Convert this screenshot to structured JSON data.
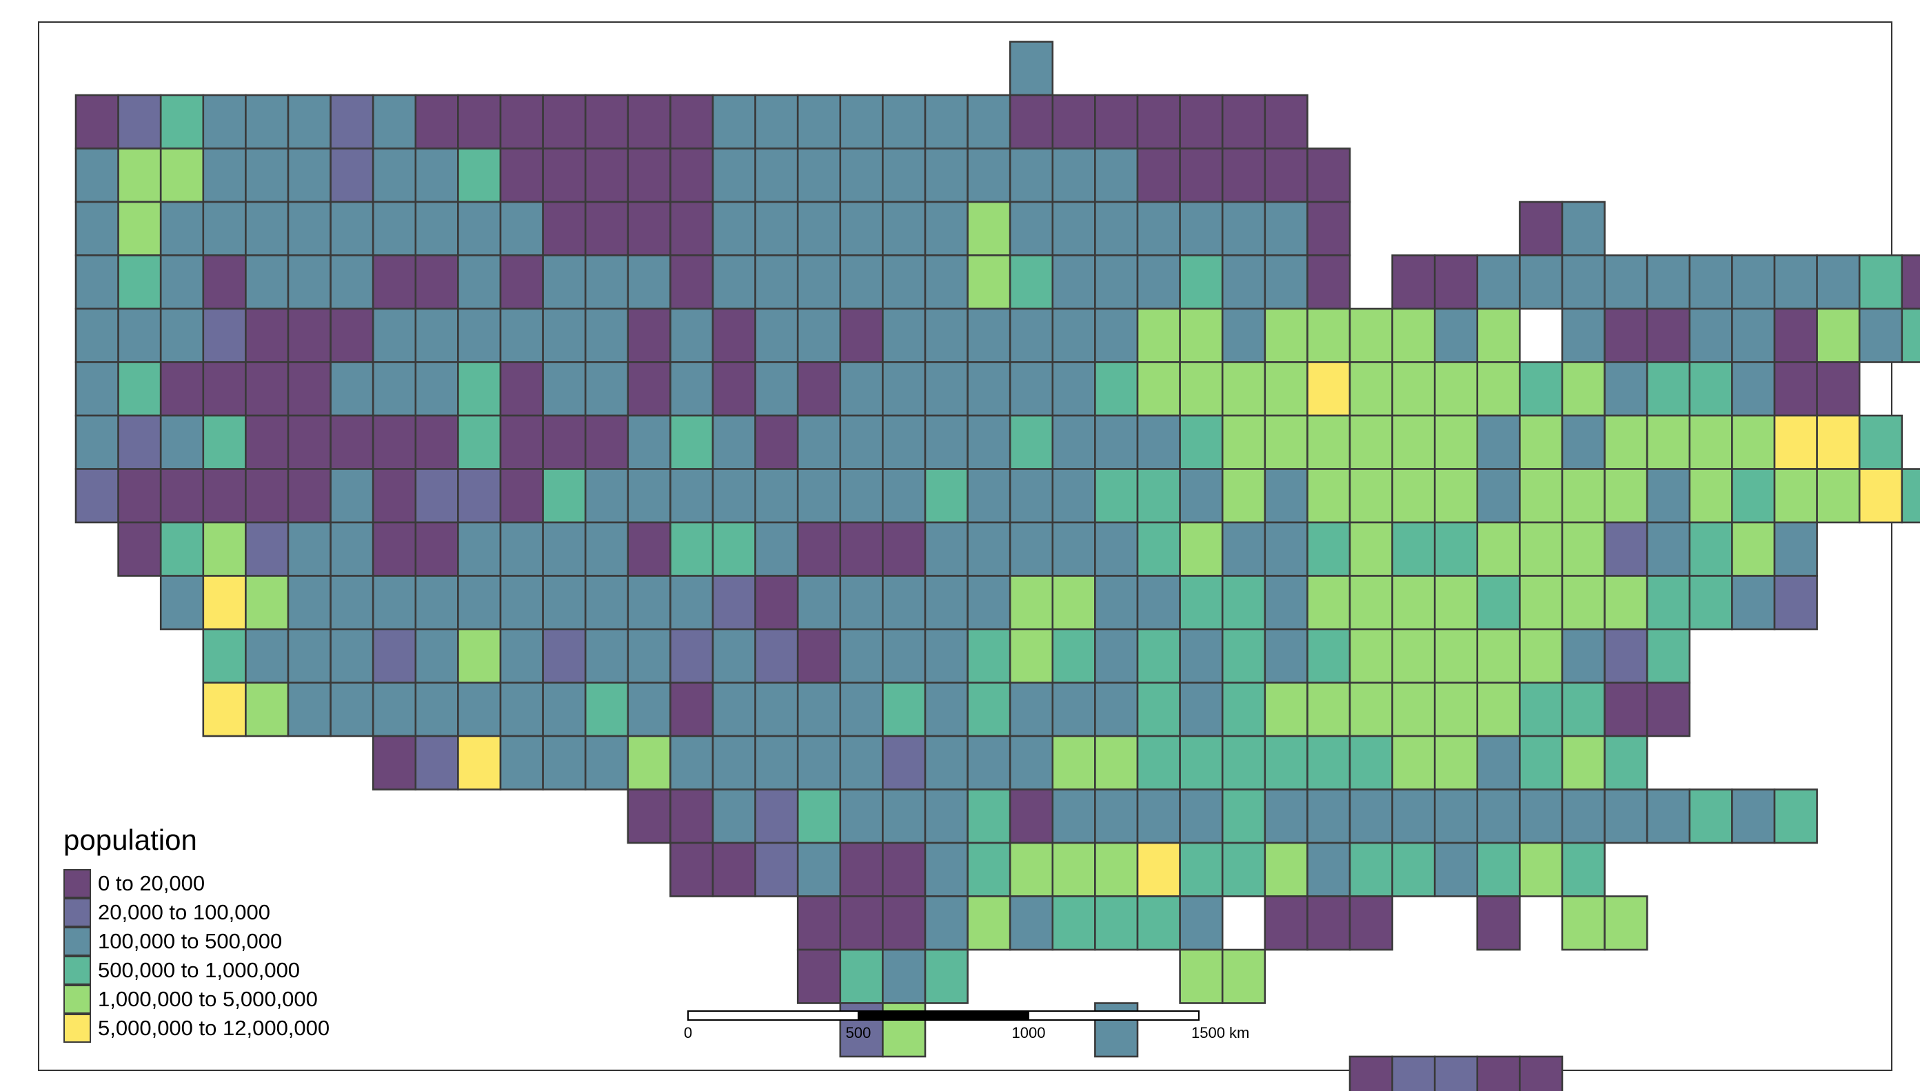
{
  "map": {
    "legend_title": "population",
    "classes": [
      {
        "label": "0 to 20,000",
        "color": "#6c4779"
      },
      {
        "label": "20,000 to 100,000",
        "color": "#6c6d9b"
      },
      {
        "label": "100,000 to 500,000",
        "color": "#5f8ea1"
      },
      {
        "label": "500,000 to 1,000,000",
        "color": "#5db99a"
      },
      {
        "label": "1,000,000 to 5,000,000",
        "color": "#9adb76"
      },
      {
        "label": "5,000,000 to 12,000,000",
        "color": "#fde765"
      }
    ],
    "scale_bar": {
      "ticks": [
        "0",
        "500",
        "1000",
        "1500 km"
      ]
    }
  },
  "chart_data": {
    "type": "heatmap",
    "title": "",
    "variable": "population",
    "value_legend": {
      "0": "0 to 20,000",
      "1": "20,000 to 100,000",
      "2": "100,000 to 500,000",
      "3": "500,000 to 1,000,000",
      "4": "1,000,000 to 5,000,000",
      "5": "5,000,000 to 12,000,000"
    },
    "row_offsets": [
      22,
      0,
      0,
      0,
      0,
      0,
      0,
      0,
      0,
      1,
      2,
      3,
      3,
      7,
      13,
      14,
      17,
      17,
      18,
      30
    ],
    "rows": [
      "2",
      "01322212000000022222220000000",
      "244222122300000222222222200000................0.2",
      "242222222220000222222422222220....02",
      "232022200202220222222432223220.0022222222230",
      "2221000222222020220222222442444424.200220423222032",
      "230000222302202020222222344445444434233200",
      "2123000003000232022222322234444442424444553",
      "1000002011032222222232223324244442444243445342",
      "0341220022220332000222223422343344412342",
      "254222222222210222224422332444434443321",
      "32221242122121022234323232344444213",
      "54222222232022223232223234444443300",
      "015222422222122244333333442343",
      "0021322230222232222222222323",
      "0012002344453342332343",
      "0002423332.000..0.44",
      "0323.....44",
      "14....2",
      "01100"
    ]
  }
}
